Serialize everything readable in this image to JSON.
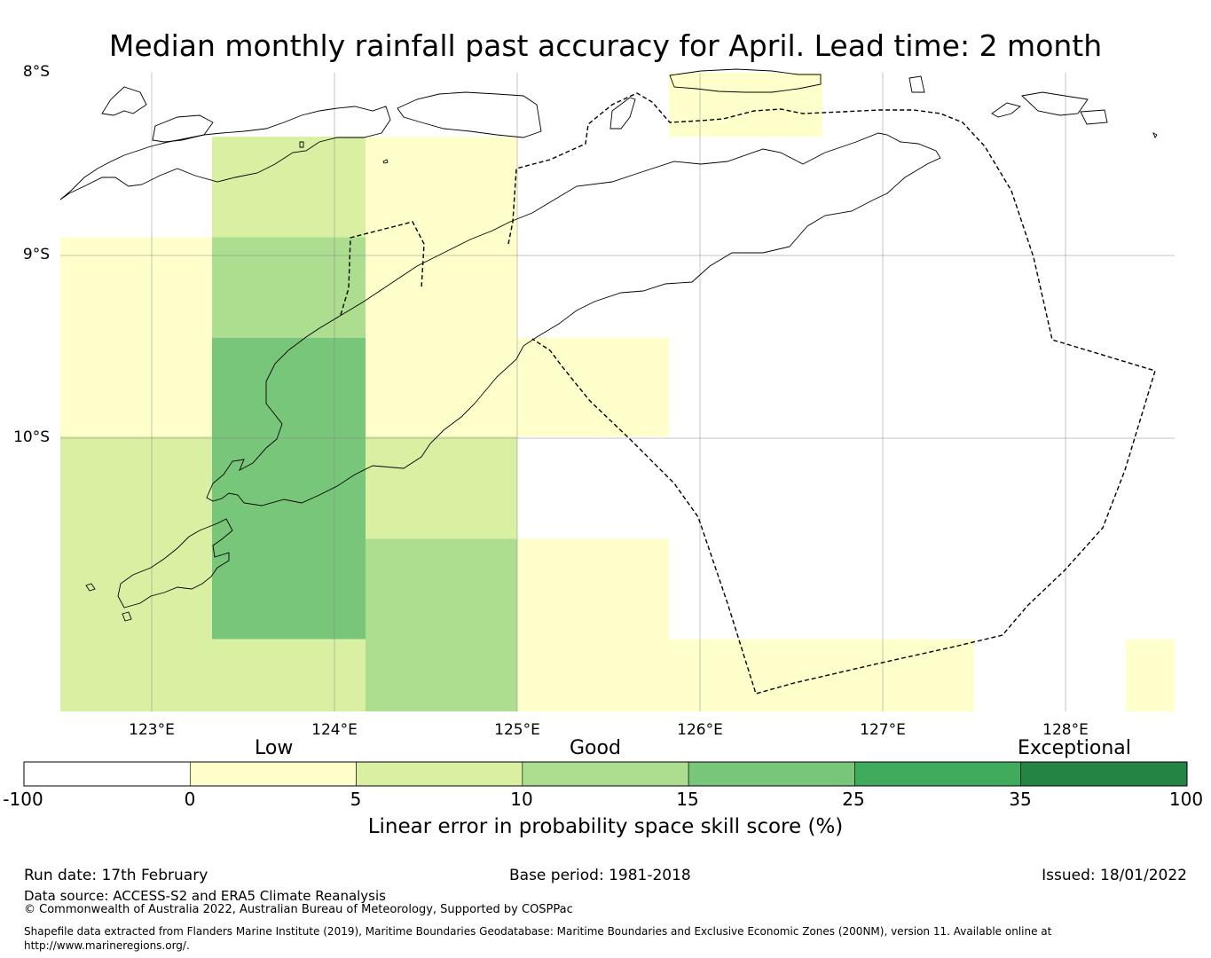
{
  "title": "Median monthly rainfall past accuracy for April. Lead time: 2 month",
  "map": {
    "lat_labels": [
      "8°S",
      "9°S",
      "10°S"
    ],
    "lon_labels": [
      "123°E",
      "124°E",
      "125°E",
      "126°E",
      "127°E",
      "128°E"
    ],
    "grid_cells": [
      {
        "lon_from": 122.5,
        "lon_to": 123.33,
        "lat_from": -8.9,
        "lat_to": -9.99,
        "category": "low"
      },
      {
        "lon_from": 122.5,
        "lon_to": 123.33,
        "lat_from": -9.99,
        "lat_to": -11.5,
        "category": "good_lower"
      },
      {
        "lon_from": 123.33,
        "lon_to": 124.17,
        "lat_from": -8.35,
        "lat_to": -8.9,
        "category": "good_lower"
      },
      {
        "lon_from": 123.33,
        "lon_to": 124.17,
        "lat_from": -8.9,
        "lat_to": -9.45,
        "category": "good"
      },
      {
        "lon_from": 123.33,
        "lon_to": 124.17,
        "lat_from": -9.45,
        "lat_to": -11.1,
        "category": "good_upper"
      },
      {
        "lon_from": 123.33,
        "lon_to": 124.17,
        "lat_from": -11.1,
        "lat_to": -11.5,
        "category": "good_lower"
      },
      {
        "lon_from": 124.17,
        "lon_to": 125.0,
        "lat_from": -8.35,
        "lat_to": -9.99,
        "category": "low"
      },
      {
        "lon_from": 124.17,
        "lon_to": 125.0,
        "lat_from": -9.99,
        "lat_to": -10.55,
        "category": "good_lower"
      },
      {
        "lon_from": 124.17,
        "lon_to": 125.0,
        "lat_from": -10.55,
        "lat_to": -11.5,
        "category": "good"
      },
      {
        "lon_from": 125.0,
        "lon_to": 125.83,
        "lat_from": -9.45,
        "lat_to": -9.99,
        "category": "low"
      },
      {
        "lon_from": 125.0,
        "lon_to": 125.83,
        "lat_from": -10.55,
        "lat_to": -11.5,
        "category": "low"
      },
      {
        "lon_from": 125.83,
        "lon_to": 126.67,
        "lat_from": -7.99,
        "lat_to": -8.35,
        "category": "low"
      },
      {
        "lon_from": 125.83,
        "lon_to": 127.5,
        "lat_from": -11.1,
        "lat_to": -11.5,
        "category": "low"
      },
      {
        "lon_from": 128.33,
        "lon_to": 128.6,
        "lat_from": -11.1,
        "lat_to": -11.5,
        "category": "low"
      }
    ]
  },
  "legend": {
    "category_labels": [
      "Low",
      "Good",
      "Exceptional"
    ],
    "bins": [
      {
        "from": "-100",
        "to": "0",
        "color": "#ffffff"
      },
      {
        "from": "0",
        "to": "5",
        "color": "#ffffcc"
      },
      {
        "from": "5",
        "to": "10",
        "color": "#d9f0a3"
      },
      {
        "from": "10",
        "to": "15",
        "color": "#addd8e"
      },
      {
        "from": "15",
        "to": "25",
        "color": "#78c679"
      },
      {
        "from": "25",
        "to": "35",
        "color": "#41ab5d"
      },
      {
        "from": "35",
        "to": "100",
        "color": "#238443"
      }
    ],
    "tick_labels": [
      "-100",
      "0",
      "5",
      "10",
      "15",
      "25",
      "35",
      "100"
    ],
    "title": "Linear error in probability space skill score (%)"
  },
  "footer": {
    "run_date": "Run date: 17th February",
    "base_period": "Base period: 1981-2018",
    "issued": "Issued: 18/01/2022",
    "data_source": "Data source: ACCESS-S2 and ERA5 Climate Reanalysis",
    "copyright": "© Commonwealth of Australia 2022, Australian Bureau of Meteorology, Supported by COSPPac",
    "shapefile": "Shapefile data extracted from Flanders Marine Institute (2019), Maritime Boundaries Geodatabase: Maritime Boundaries and Exclusive Economic Zones (200NM), version 11. Available online at http://www.marineregions.org/."
  },
  "colors": {
    "low": "#ffffcc",
    "good_lower": "#d9f0a3",
    "good": "#addd8e",
    "good_upper": "#78c679",
    "gridline": "#888888"
  }
}
